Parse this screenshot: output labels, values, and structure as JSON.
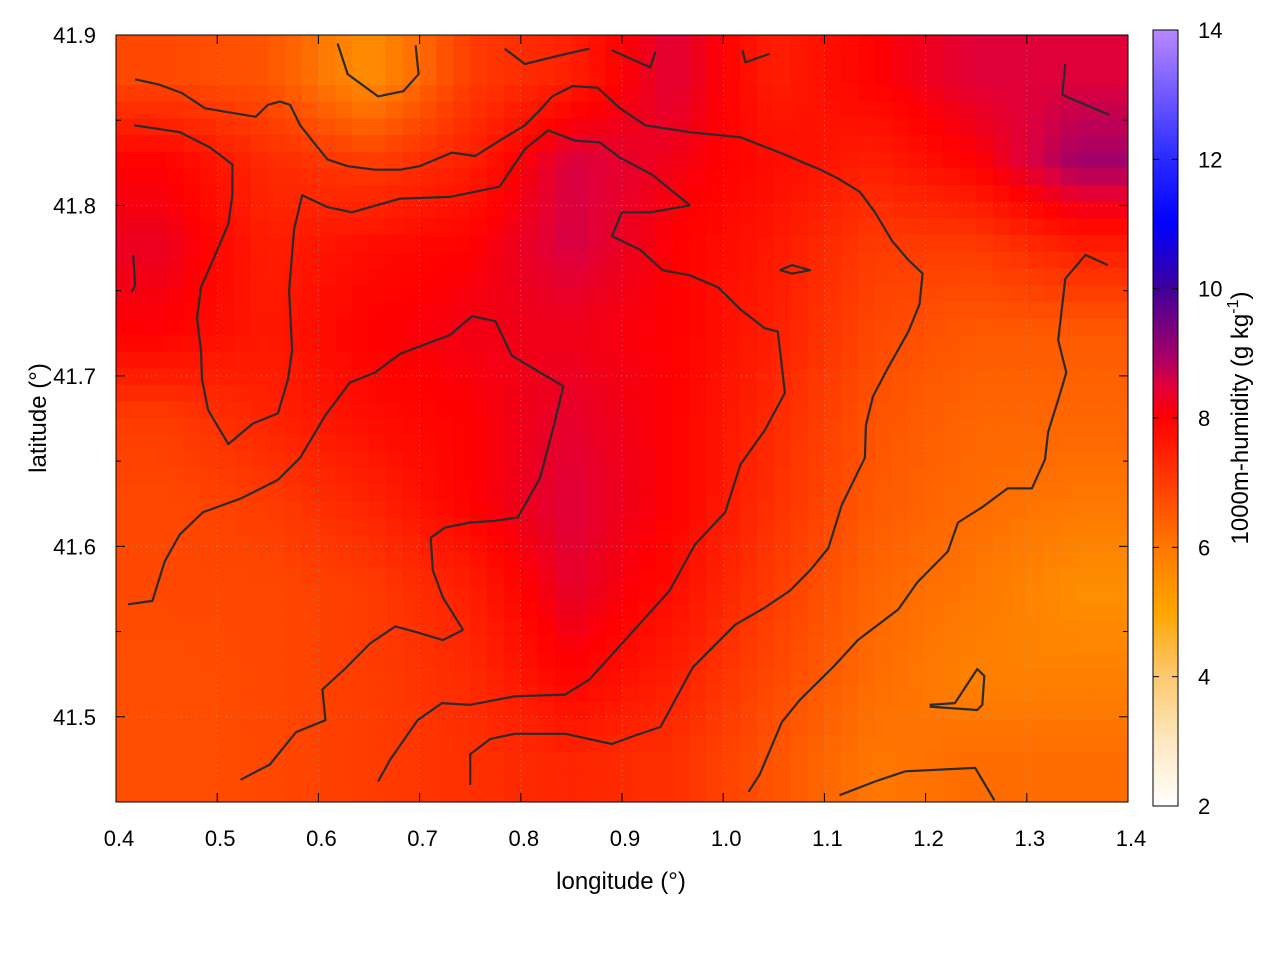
{
  "chart_data": {
    "type": "heatmap",
    "xlabel": "longitude (°)",
    "ylabel": "latitude (°)",
    "colorbar_label": {
      "main": "1000m-humidity (g kg",
      "sup": "-1",
      "close": ")"
    },
    "xlim": [
      0.4,
      1.4
    ],
    "ylim": [
      41.45,
      41.9
    ],
    "cblim": [
      2,
      14
    ],
    "grid": true,
    "x_ticks": [
      "0.4",
      "0.5",
      "0.6",
      "0.7",
      "0.8",
      "0.9",
      "1.0",
      "1.1",
      "1.2",
      "1.3",
      "1.4"
    ],
    "y_ticks": [
      "41.5",
      "41.6",
      "41.7",
      "41.8",
      "41.9"
    ],
    "cb_ticks": [
      "2",
      "4",
      "6",
      "8",
      "10",
      "12",
      "14"
    ],
    "palette": [
      [
        2,
        "#ffffff"
      ],
      [
        3,
        "#fde8c0"
      ],
      [
        4,
        "#fcc870"
      ],
      [
        5,
        "#ffa500"
      ],
      [
        6,
        "#ff7800"
      ],
      [
        7,
        "#ff3c00"
      ],
      [
        8,
        "#ff0000"
      ],
      [
        8.5,
        "#e0003a"
      ],
      [
        9,
        "#a0006a"
      ],
      [
        10,
        "#40009a"
      ],
      [
        11,
        "#0000ff"
      ],
      [
        12,
        "#2a2aff"
      ],
      [
        14,
        "#b888ff"
      ]
    ],
    "grid_lon": [
      0.45,
      0.55,
      0.65,
      0.75,
      0.85,
      0.95,
      1.05,
      1.15,
      1.25,
      1.35
    ],
    "grid_lat": [
      41.875,
      41.825,
      41.775,
      41.725,
      41.675,
      41.625,
      41.575,
      41.525,
      41.475
    ],
    "values": [
      [
        6.8,
        6.6,
        5.5,
        7.0,
        7.5,
        8.5,
        7.5,
        8.0,
        8.5,
        8.5
      ],
      [
        8.0,
        7.3,
        7.0,
        7.5,
        8.6,
        8.2,
        7.8,
        7.5,
        8.0,
        9.0
      ],
      [
        8.3,
        7.5,
        7.8,
        8.0,
        8.6,
        8.0,
        7.6,
        7.0,
        7.0,
        7.5
      ],
      [
        8.0,
        7.6,
        8.0,
        8.2,
        8.2,
        8.0,
        7.5,
        6.8,
        6.5,
        6.5
      ],
      [
        7.0,
        7.4,
        7.8,
        8.0,
        8.4,
        8.0,
        7.3,
        6.6,
        6.3,
        6.3
      ],
      [
        6.8,
        7.0,
        7.4,
        8.0,
        8.5,
        8.0,
        7.2,
        6.5,
        6.2,
        6.0
      ],
      [
        6.8,
        6.8,
        7.0,
        7.5,
        8.4,
        7.8,
        7.0,
        6.3,
        6.0,
        5.5
      ],
      [
        6.7,
        6.8,
        7.0,
        7.3,
        8.0,
        7.5,
        6.8,
        6.2,
        5.8,
        5.8
      ],
      [
        6.7,
        6.8,
        7.0,
        7.2,
        7.4,
        7.2,
        6.6,
        6.0,
        6.2,
        6.2
      ]
    ],
    "contours": [
      [
        [
          0.418,
          41.847
        ],
        [
          0.463,
          41.843
        ],
        [
          0.493,
          41.834
        ],
        [
          0.515,
          41.824
        ],
        [
          0.515,
          41.806
        ],
        [
          0.511,
          41.789
        ],
        [
          0.498,
          41.771
        ],
        [
          0.484,
          41.752
        ],
        [
          0.48,
          41.734
        ],
        [
          0.484,
          41.715
        ],
        [
          0.485,
          41.698
        ],
        [
          0.491,
          41.68
        ],
        [
          0.511,
          41.66
        ],
        [
          0.535,
          41.672
        ],
        [
          0.56,
          41.678
        ],
        [
          0.57,
          41.698
        ],
        [
          0.574,
          41.715
        ],
        [
          0.571,
          41.75
        ],
        [
          0.576,
          41.786
        ],
        [
          0.584,
          41.806
        ],
        [
          0.609,
          41.799
        ],
        [
          0.633,
          41.796
        ],
        [
          0.681,
          41.804
        ],
        [
          0.73,
          41.805
        ],
        [
          0.779,
          41.811
        ],
        [
          0.804,
          41.833
        ],
        [
          0.827,
          41.844
        ],
        [
          0.854,
          41.838
        ],
        [
          0.878,
          41.837
        ],
        [
          0.898,
          41.828
        ],
        [
          0.93,
          41.818
        ],
        [
          0.967,
          41.8
        ],
        [
          0.928,
          41.796
        ],
        [
          0.9,
          41.796
        ],
        [
          0.89,
          41.782
        ],
        [
          0.918,
          41.774
        ],
        [
          0.94,
          41.762
        ],
        [
          0.967,
          41.759
        ],
        [
          0.995,
          41.752
        ],
        [
          1.017,
          41.739
        ],
        [
          1.041,
          41.728
        ],
        [
          1.054,
          41.726
        ],
        [
          1.061,
          41.69
        ],
        [
          1.041,
          41.668
        ],
        [
          1.017,
          41.648
        ],
        [
          1.002,
          41.62
        ],
        [
          0.972,
          41.601
        ],
        [
          0.947,
          41.574
        ],
        [
          0.903,
          41.545
        ],
        [
          0.868,
          41.522
        ],
        [
          0.844,
          41.513
        ],
        [
          0.794,
          41.512
        ],
        [
          0.75,
          41.507
        ],
        [
          0.722,
          41.508
        ],
        [
          0.698,
          41.498
        ],
        [
          0.671,
          41.475
        ],
        [
          0.659,
          41.462
        ]
      ],
      [
        [
          0.743,
          41.551
        ],
        [
          0.723,
          41.57
        ],
        [
          0.713,
          41.586
        ],
        [
          0.711,
          41.605
        ],
        [
          0.725,
          41.611
        ],
        [
          0.75,
          41.614
        ],
        [
          0.775,
          41.615
        ],
        [
          0.797,
          41.617
        ],
        [
          0.819,
          41.64
        ],
        [
          0.834,
          41.674
        ],
        [
          0.842,
          41.694
        ],
        [
          0.819,
          41.702
        ],
        [
          0.791,
          41.712
        ],
        [
          0.775,
          41.732
        ],
        [
          0.752,
          41.735
        ],
        [
          0.73,
          41.724
        ],
        [
          0.681,
          41.713
        ],
        [
          0.656,
          41.702
        ],
        [
          0.631,
          41.696
        ],
        [
          0.607,
          41.677
        ],
        [
          0.582,
          41.652
        ],
        [
          0.56,
          41.639
        ],
        [
          0.523,
          41.628
        ],
        [
          0.486,
          41.62
        ],
        [
          0.463,
          41.607
        ],
        [
          0.448,
          41.591
        ],
        [
          0.436,
          41.568
        ],
        [
          0.412,
          41.566
        ]
      ],
      [
        [
          0.743,
          41.551
        ],
        [
          0.723,
          41.545
        ],
        [
          0.695,
          41.55
        ],
        [
          0.676,
          41.553
        ],
        [
          0.651,
          41.543
        ],
        [
          0.626,
          41.528
        ],
        [
          0.604,
          41.516
        ],
        [
          0.607,
          41.498
        ],
        [
          0.578,
          41.491
        ],
        [
          0.552,
          41.472
        ],
        [
          0.523,
          41.463
        ]
      ],
      [
        [
          0.75,
          41.46
        ],
        [
          0.75,
          41.478
        ],
        [
          0.77,
          41.487
        ],
        [
          0.794,
          41.49
        ],
        [
          0.844,
          41.49
        ],
        [
          0.89,
          41.484
        ],
        [
          0.913,
          41.489
        ],
        [
          0.938,
          41.494
        ],
        [
          0.97,
          41.529
        ],
        [
          1.012,
          41.554
        ],
        [
          1.041,
          41.564
        ],
        [
          1.066,
          41.574
        ],
        [
          1.086,
          41.586
        ],
        [
          1.104,
          41.599
        ],
        [
          1.117,
          41.624
        ],
        [
          1.14,
          41.652
        ],
        [
          1.141,
          41.671
        ],
        [
          1.148,
          41.688
        ],
        [
          1.163,
          41.705
        ],
        [
          1.183,
          41.726
        ],
        [
          1.194,
          41.742
        ],
        [
          1.197,
          41.76
        ],
        [
          1.183,
          41.768
        ],
        [
          1.167,
          41.779
        ],
        [
          1.15,
          41.796
        ],
        [
          1.135,
          41.808
        ],
        [
          1.113,
          41.816
        ],
        [
          1.096,
          41.821
        ],
        [
          1.056,
          41.831
        ],
        [
          1.017,
          41.84
        ],
        [
          0.967,
          41.843
        ],
        [
          0.923,
          41.847
        ],
        [
          0.898,
          41.857
        ],
        [
          0.876,
          41.869
        ],
        [
          0.851,
          41.87
        ],
        [
          0.831,
          41.864
        ],
        [
          0.819,
          41.856
        ],
        [
          0.804,
          41.847
        ],
        [
          0.779,
          41.838
        ],
        [
          0.755,
          41.829
        ],
        [
          0.732,
          41.831
        ],
        [
          0.7,
          41.823
        ],
        [
          0.681,
          41.821
        ],
        [
          0.656,
          41.821
        ],
        [
          0.629,
          41.823
        ],
        [
          0.609,
          41.827
        ],
        [
          0.598,
          41.835
        ],
        [
          0.582,
          41.847
        ],
        [
          0.572,
          41.859
        ],
        [
          0.562,
          41.861
        ],
        [
          0.55,
          41.859
        ],
        [
          0.538,
          41.852
        ],
        [
          0.488,
          41.857
        ],
        [
          0.465,
          41.866
        ],
        [
          0.442,
          41.871
        ],
        [
          0.419,
          41.874
        ]
      ],
      [
        [
          1.025,
          41.456
        ],
        [
          1.036,
          41.466
        ],
        [
          1.058,
          41.497
        ],
        [
          1.076,
          41.51
        ],
        [
          1.11,
          41.53
        ],
        [
          1.133,
          41.545
        ],
        [
          1.173,
          41.563
        ],
        [
          1.192,
          41.579
        ],
        [
          1.222,
          41.597
        ],
        [
          1.232,
          41.614
        ],
        [
          1.256,
          41.623
        ],
        [
          1.281,
          41.634
        ],
        [
          1.305,
          41.634
        ],
        [
          1.318,
          41.651
        ],
        [
          1.321,
          41.667
        ],
        [
          1.331,
          41.686
        ],
        [
          1.339,
          41.702
        ],
        [
          1.331,
          41.721
        ],
        [
          1.338,
          41.757
        ],
        [
          1.358,
          41.771
        ],
        [
          1.38,
          41.765
        ]
      ],
      [
        [
          0.619,
          41.895
        ],
        [
          0.629,
          41.877
        ],
        [
          0.659,
          41.864
        ],
        [
          0.684,
          41.867
        ],
        [
          0.699,
          41.877
        ],
        [
          0.696,
          41.894
        ]
      ],
      [
        [
          0.784,
          41.892
        ],
        [
          0.804,
          41.883
        ],
        [
          0.838,
          41.888
        ],
        [
          0.868,
          41.892
        ]
      ],
      [
        [
          0.89,
          41.891
        ],
        [
          0.928,
          41.881
        ],
        [
          0.933,
          41.89
        ]
      ],
      [
        [
          1.019,
          41.891
        ],
        [
          1.022,
          41.884
        ],
        [
          1.046,
          41.889
        ]
      ],
      [
        [
          1.338,
          41.883
        ],
        [
          1.335,
          41.865
        ],
        [
          1.382,
          41.853
        ]
      ],
      [
        [
          0.417,
          41.771
        ],
        [
          0.419,
          41.753
        ],
        [
          0.415,
          41.749
        ]
      ],
      [
        [
          1.056,
          41.762
        ],
        [
          1.068,
          41.765
        ],
        [
          1.086,
          41.762
        ],
        [
          1.068,
          41.76
        ],
        [
          1.056,
          41.762
        ]
      ],
      [
        [
          1.204,
          41.507
        ],
        [
          1.229,
          41.508
        ],
        [
          1.251,
          41.528
        ],
        [
          1.258,
          41.524
        ],
        [
          1.256,
          41.507
        ],
        [
          1.251,
          41.504
        ],
        [
          1.204,
          41.506
        ]
      ],
      [
        [
          1.115,
          41.454
        ],
        [
          1.15,
          41.462
        ],
        [
          1.18,
          41.468
        ],
        [
          1.249,
          41.47
        ],
        [
          1.268,
          41.451
        ]
      ]
    ],
    "contour_color": "#2b2b2b"
  }
}
